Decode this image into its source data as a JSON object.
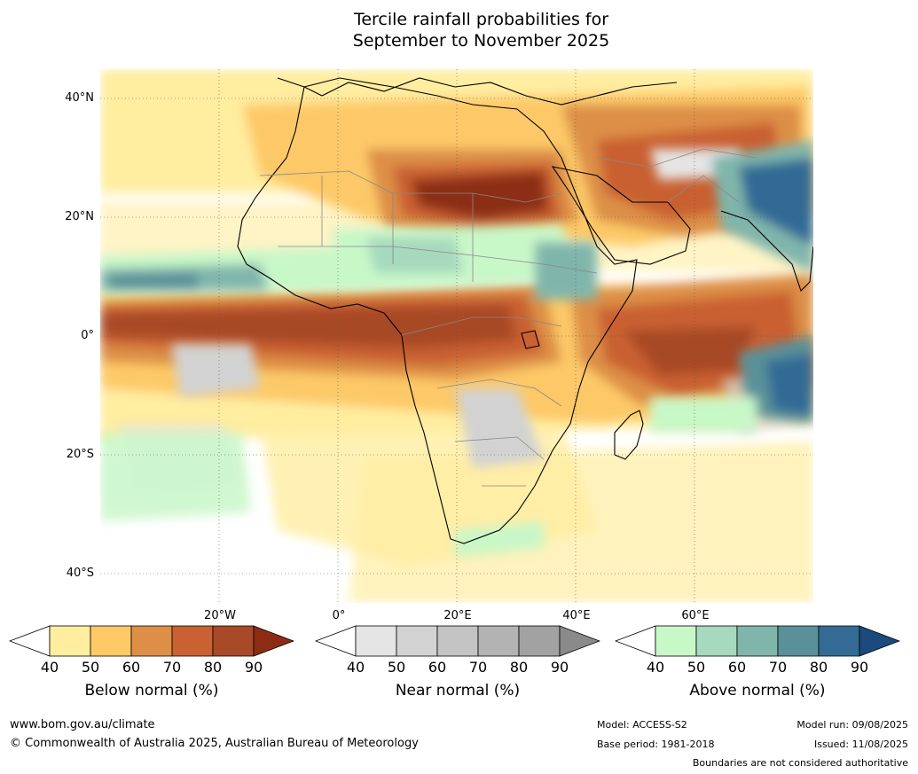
{
  "title": {
    "line1": "Tercile rainfall probabilities for",
    "line2": "September to November 2025"
  },
  "map": {
    "lat_labels": [
      "40°N",
      "20°N",
      "0°",
      "20°S",
      "40°S"
    ],
    "lon_labels": [
      "20°W",
      "0°",
      "20°E",
      "40°E",
      "60°E"
    ]
  },
  "colorbars": [
    {
      "title": "Below normal (%)",
      "ticks": [
        "40",
        "50",
        "60",
        "70",
        "80",
        "90"
      ],
      "colors": [
        "#ffffff",
        "#ffeda0",
        "#fdc967",
        "#dd8f47",
        "#c96132",
        "#a84a27",
        "#8c2d13"
      ]
    },
    {
      "title": "Near normal (%)",
      "ticks": [
        "40",
        "50",
        "60",
        "70",
        "80",
        "90"
      ],
      "colors": [
        "#ffffff",
        "#e5e5e5",
        "#d2d2d2",
        "#c3c3c3",
        "#b3b3b3",
        "#a2a2a2",
        "#8a8a8a"
      ]
    },
    {
      "title": "Above normal (%)",
      "ticks": [
        "40",
        "50",
        "60",
        "70",
        "80",
        "90"
      ],
      "colors": [
        "#ffffff",
        "#c8f7c8",
        "#a6d9be",
        "#80b5ab",
        "#5a9199",
        "#336b95",
        "#1a4a7e"
      ]
    }
  ],
  "footer": {
    "website": "www.bom.gov.au/climate",
    "copyright": "© Commonwealth of Australia 2025, Australian Bureau of Meteorology",
    "model": "Model: ACCESS-S2",
    "base_period": "Base period: 1981-2018",
    "model_run": "Model run: 09/08/2025",
    "issued": "Issued: 11/08/2025",
    "disclaimer": "Boundaries are not considered authoritative"
  }
}
